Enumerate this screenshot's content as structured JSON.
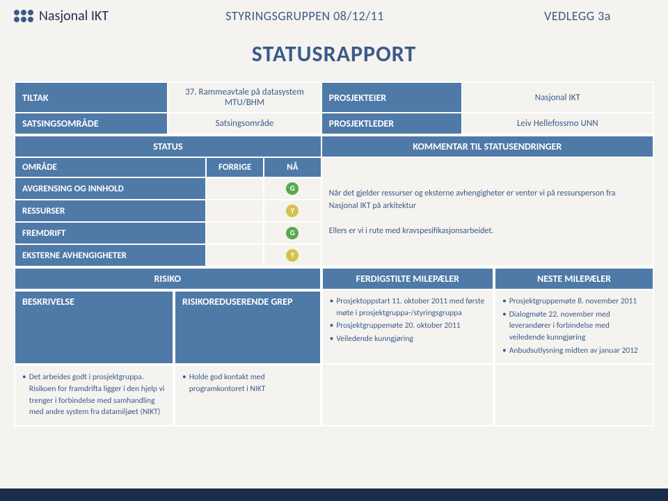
{
  "header": {
    "logo_text": "Nasjonal IKT",
    "center": "STYRINGSGRUPPEN 08/12/11",
    "right": "VEDLEGG 3a"
  },
  "main_title": "STATUSRAPPORT",
  "labels": {
    "tiltak": "TILTAK",
    "satsingsomrade": "SATSINGSOMRÅDE",
    "prosjekteier": "PROSJEKTEIER",
    "prosjektleder": "PROSJEKTLEDER",
    "status": "STATUS",
    "kommentar": "KOMMENTAR TIL STATUSENDRINGER",
    "omrade": "OMRÅDE",
    "forrige": "FORRIGE",
    "na": "NÅ",
    "avgrensing": "AVGRENSING OG INNHOLD",
    "ressurser": "RESSURSER",
    "fremdrift": "FREMDRIFT",
    "eksterne": "EKSTERNE AVHENGIGHETER",
    "risiko": "RISIKO",
    "ferdigstilte": "FERDIGSTILTE MILEPÆLER",
    "neste": "NESTE MILEPÆLER",
    "beskrivelse": "BESKRIVELSE",
    "risikoreduserende": "RISIKOREDUSERENDE GREP"
  },
  "values": {
    "tiltak": "37. Rammeavtale på datasystem MTU/BHM",
    "satsingsomrade": "Satsingsområde",
    "prosjekteier": "Nasjonal IKT",
    "prosjektleder": "Leiv Hellefossmo UNN"
  },
  "status_rows": {
    "avgrensing": "G",
    "ressurser": "Y",
    "fremdrift": "G",
    "eksterne": "Y"
  },
  "comment1": "Når det gjelder ressurser og eksterne avhengigheter er venter vi på ressursperson fra Nasjonal IKT på arkitektur",
  "comment2": "Ellers er vi i rute med kravspesifikasjonsarbeidet.",
  "beskrivelse_items": [
    "Det arbeides godt i prosjektgruppa. Risikoen for framdrifta ligger i den hjelp vi trenger i forbindelse med samhandling med andre system fra datamiljøet (NIKT)"
  ],
  "risikoreduserende_items": [
    "Holde god kontakt med programkontoret i NIKT"
  ],
  "ferdigstilte_items": [
    "Prosjektoppstart 11. oktober 2011 med første møte i prosjektgruppa-/styringsgruppa",
    "Prosjektgruppemøte 20. oktober 2011",
    "Veiledende kunngjøring"
  ],
  "neste_items": [
    "Prosjektgruppemøte 8. november 2011",
    "Dialogmøte 22. november med leverandører i forbindelse med veiledende kunngjøring",
    "Anbudsutlysning midten av januar 2012"
  ],
  "colors": {
    "brand": "#3a5a8a",
    "cell_dark": "#4f7aa8",
    "bg": "#f5f3ef",
    "green": "#5aa84f",
    "yellow": "#d4c24a"
  }
}
